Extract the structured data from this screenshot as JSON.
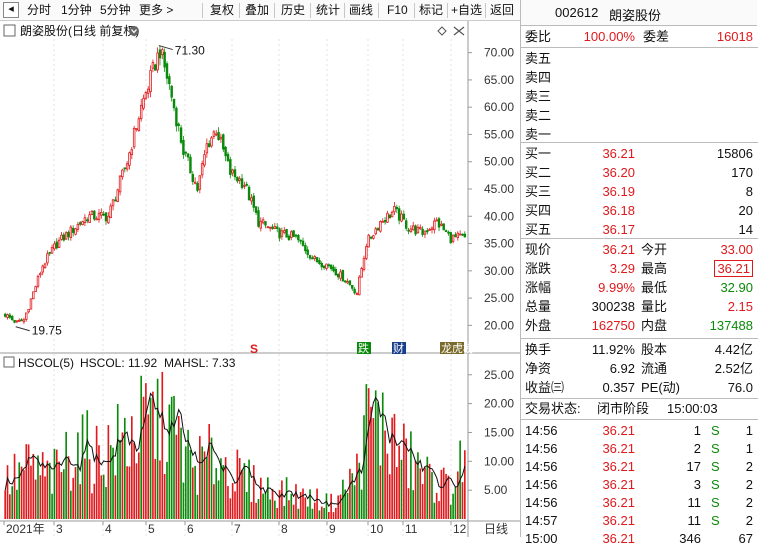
{
  "toolbar": {
    "back_icon": "back-icon",
    "items": [
      "分时",
      "1分钟",
      "5分钟",
      "更多 >",
      "复权",
      "叠加",
      "历史",
      "统计",
      "画线",
      "F10",
      "标记",
      "+自选",
      "返回"
    ]
  },
  "stock": {
    "code": "002612",
    "name": "朗姿股份"
  },
  "chart_title": "朗姿股份(日线 前复权)",
  "chart_title_icon": "chevron-down-icon",
  "period_label": "日线",
  "indicator": {
    "name": "HSCOL(5)",
    "hscol": "HSCOL: 11.92",
    "mahsl": "MAHSL: 7.33"
  },
  "colors": {
    "up": "#e0191d",
    "down": "#0a8a0a",
    "line": "#111111"
  },
  "markers": [
    {
      "text": "S",
      "color": "#e0191d"
    },
    {
      "text": "跌",
      "color": "#ffffff",
      "bg": "#0a8a0a"
    },
    {
      "text": "财",
      "color": "#ffffff",
      "bg": "#1a3f8a"
    },
    {
      "text": "龙虎榜",
      "color": "#ffffff",
      "bg": "#7a6a2a"
    }
  ],
  "quote": {
    "weibi": {
      "label": "委比",
      "value": "100.00%"
    },
    "weicha": {
      "label": "委差",
      "value": "16018"
    },
    "asks": [
      {
        "label": "卖五",
        "price": "",
        "vol": ""
      },
      {
        "label": "卖四",
        "price": "",
        "vol": ""
      },
      {
        "label": "卖三",
        "price": "",
        "vol": ""
      },
      {
        "label": "卖二",
        "price": "",
        "vol": ""
      },
      {
        "label": "卖一",
        "price": "",
        "vol": ""
      }
    ],
    "bids": [
      {
        "label": "买一",
        "price": "36.21",
        "vol": "15806"
      },
      {
        "label": "买二",
        "price": "36.20",
        "vol": "170"
      },
      {
        "label": "买三",
        "price": "36.19",
        "vol": "8"
      },
      {
        "label": "买四",
        "price": "36.18",
        "vol": "20"
      },
      {
        "label": "买五",
        "price": "36.17",
        "vol": "14"
      }
    ],
    "stats": [
      {
        "l1": "现价",
        "v1": "36.21",
        "c1": "red",
        "l2": "今开",
        "v2": "33.00",
        "c2": "red"
      },
      {
        "l1": "涨跌",
        "v1": "3.29",
        "c1": "red",
        "l2": "最高",
        "v2": "36.21",
        "c2": "red"
      },
      {
        "l1": "涨幅",
        "v1": "9.99%",
        "c1": "red",
        "l2": "最低",
        "v2": "32.90",
        "c2": "green"
      },
      {
        "l1": "总量",
        "v1": "300238",
        "c1": "blk",
        "l2": "量比",
        "v2": "2.15",
        "c2": "red"
      },
      {
        "l1": "外盘",
        "v1": "162750",
        "c1": "red",
        "l2": "内盘",
        "v2": "137488",
        "c2": "green"
      }
    ],
    "stats2": [
      {
        "l1": "换手",
        "v1": "11.92%",
        "c1": "blk",
        "l2": "股本",
        "v2": "4.42亿",
        "c2": "blk"
      },
      {
        "l1": "净资",
        "v1": "6.92",
        "c1": "blk",
        "l2": "流通",
        "v2": "2.52亿",
        "c2": "blk"
      },
      {
        "l1": "收益㈢",
        "v1": "0.357",
        "c1": "blk",
        "l2": "PE(动)",
        "v2": "76.0",
        "c2": "blk"
      }
    ],
    "status": {
      "label": "交易状态:",
      "value": "闭市阶段",
      "time": "15:00:03"
    },
    "trades": [
      {
        "time": "14:56",
        "price": "36.21",
        "vol": "1",
        "side": "S",
        "n": "1"
      },
      {
        "time": "14:56",
        "price": "36.21",
        "vol": "2",
        "side": "S",
        "n": "1"
      },
      {
        "time": "14:56",
        "price": "36.21",
        "vol": "17",
        "side": "S",
        "n": "2"
      },
      {
        "time": "14:56",
        "price": "36.21",
        "vol": "3",
        "side": "S",
        "n": "2"
      },
      {
        "time": "14:56",
        "price": "36.21",
        "vol": "11",
        "side": "S",
        "n": "2"
      },
      {
        "time": "14:57",
        "price": "36.21",
        "vol": "11",
        "side": "S",
        "n": "2"
      },
      {
        "time": "15:00",
        "price": "36.21",
        "vol": "346",
        "side": "",
        "n": "67"
      }
    ]
  },
  "chart_data": [
    {
      "type": "candlestick",
      "title": "朗姿股份(日线 前复权)",
      "ylim": [
        17.5,
        72.5
      ],
      "yticks": [
        20,
        25,
        30,
        35,
        40,
        45,
        50,
        55,
        60,
        65,
        70
      ],
      "ytick_labels": [
        "20.00",
        "25.00",
        "30.00",
        "35.00",
        "40.00",
        "45.00",
        "50.00",
        "55.00",
        "60.00",
        "65.00",
        "70.00"
      ],
      "annotations": [
        {
          "label": "71.30",
          "value": 71.3
        },
        {
          "label": "19.75",
          "value": 19.75
        }
      ],
      "waypoints": [
        {
          "t": 0,
          "p": 22
        },
        {
          "t": 5,
          "p": 20.5
        },
        {
          "t": 8,
          "p": 21
        },
        {
          "t": 16,
          "p": 31
        },
        {
          "t": 22,
          "p": 35
        },
        {
          "t": 30,
          "p": 38
        },
        {
          "t": 35,
          "p": 40
        },
        {
          "t": 44,
          "p": 40
        },
        {
          "t": 52,
          "p": 50
        },
        {
          "t": 58,
          "p": 60
        },
        {
          "t": 64,
          "p": 68
        },
        {
          "t": 66,
          "p": 70.5
        },
        {
          "t": 70,
          "p": 64
        },
        {
          "t": 76,
          "p": 52
        },
        {
          "t": 82,
          "p": 45
        },
        {
          "t": 86,
          "p": 53
        },
        {
          "t": 90,
          "p": 56
        },
        {
          "t": 96,
          "p": 48
        },
        {
          "t": 102,
          "p": 46
        },
        {
          "t": 108,
          "p": 39
        },
        {
          "t": 116,
          "p": 37
        },
        {
          "t": 124,
          "p": 36
        },
        {
          "t": 132,
          "p": 32
        },
        {
          "t": 138,
          "p": 31
        },
        {
          "t": 146,
          "p": 28
        },
        {
          "t": 150,
          "p": 26
        },
        {
          "t": 154,
          "p": 35
        },
        {
          "t": 160,
          "p": 39
        },
        {
          "t": 166,
          "p": 41
        },
        {
          "t": 172,
          "p": 38
        },
        {
          "t": 178,
          "p": 37
        },
        {
          "t": 184,
          "p": 39
        },
        {
          "t": 190,
          "p": 36
        },
        {
          "t": 196,
          "p": 36.2
        }
      ]
    },
    {
      "type": "bar",
      "title": "HSCOL(5)",
      "ylim": [
        0,
        26
      ],
      "yticks": [
        5,
        10,
        15,
        20,
        25
      ],
      "ytick_labels": [
        "5.00",
        "10.00",
        "15.00",
        "20.00",
        "25.00"
      ],
      "series": [
        {
          "name": "HSCOL"
        },
        {
          "name": "MAHSL"
        }
      ],
      "waypoints": [
        {
          "t": 0,
          "v": 7
        },
        {
          "t": 10,
          "v": 10
        },
        {
          "t": 20,
          "v": 8
        },
        {
          "t": 30,
          "v": 14
        },
        {
          "t": 40,
          "v": 12
        },
        {
          "t": 50,
          "v": 15
        },
        {
          "t": 60,
          "v": 18
        },
        {
          "t": 68,
          "v": 20
        },
        {
          "t": 80,
          "v": 10
        },
        {
          "t": 90,
          "v": 12
        },
        {
          "t": 100,
          "v": 8
        },
        {
          "t": 110,
          "v": 6
        },
        {
          "t": 120,
          "v": 5
        },
        {
          "t": 130,
          "v": 4
        },
        {
          "t": 140,
          "v": 3
        },
        {
          "t": 150,
          "v": 9
        },
        {
          "t": 155,
          "v": 20
        },
        {
          "t": 162,
          "v": 17
        },
        {
          "t": 170,
          "v": 12
        },
        {
          "t": 180,
          "v": 8
        },
        {
          "t": 190,
          "v": 6
        },
        {
          "t": 196,
          "v": 11.9
        }
      ]
    },
    {
      "type": "axis",
      "x_tick_labels": [
        "2021年",
        "3",
        "4",
        "5",
        "6",
        "7",
        "8",
        "9",
        "10",
        "11",
        "12"
      ]
    }
  ]
}
